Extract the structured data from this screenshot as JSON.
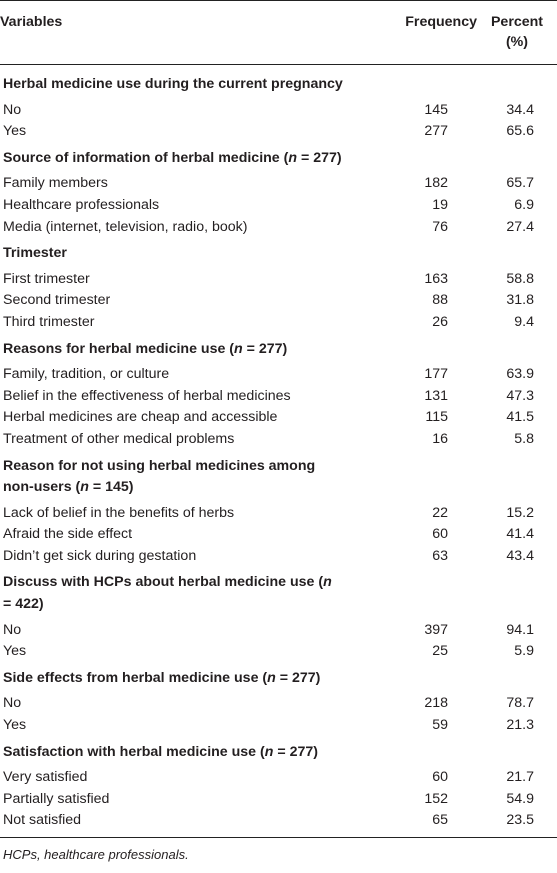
{
  "header": {
    "variables": "Variables",
    "frequency": "Frequency",
    "percent_line1": "Percent",
    "percent_line2": "(%)"
  },
  "sections": [
    {
      "title": "Herbal medicine use during the current pregnancy",
      "rows": [
        {
          "label": "No",
          "frequency": "145",
          "percent": "34.4"
        },
        {
          "label": "Yes",
          "frequency": "277",
          "percent": "65.6"
        }
      ]
    },
    {
      "title_pre": "Source of information of herbal medicine (",
      "n_letter": "n",
      "title_post": " = 277)",
      "rows": [
        {
          "label": "Family members",
          "frequency": "182",
          "percent": "65.7"
        },
        {
          "label": "Healthcare professionals",
          "frequency": "19",
          "percent": "6.9"
        },
        {
          "label": "Media (internet, television, radio, book)",
          "frequency": "76",
          "percent": "27.4"
        }
      ]
    },
    {
      "title": "Trimester",
      "rows": [
        {
          "label": "First trimester",
          "frequency": "163",
          "percent": "58.8"
        },
        {
          "label": "Second trimester",
          "frequency": "88",
          "percent": "31.8"
        },
        {
          "label": "Third trimester",
          "frequency": "26",
          "percent": "9.4"
        }
      ]
    },
    {
      "title_pre": "Reasons for herbal medicine use (",
      "n_letter": "n",
      "title_post": " = 277)",
      "rows": [
        {
          "label": "Family, tradition, or culture",
          "frequency": "177",
          "percent": "63.9"
        },
        {
          "label": "Belief in the effectiveness of herbal medicines",
          "frequency": "131",
          "percent": "47.3"
        },
        {
          "label": "Herbal medicines are cheap and accessible",
          "frequency": "115",
          "percent": "41.5"
        },
        {
          "label": "Treatment of other medical problems",
          "frequency": "16",
          "percent": "5.8"
        }
      ]
    },
    {
      "title_line1": "Reason for not using herbal medicines among",
      "title_pre": "non-users (",
      "n_letter": "n",
      "title_post": " = 145)",
      "rows": [
        {
          "label": "Lack of belief in the benefits of herbs",
          "frequency": "22",
          "percent": "15.2"
        },
        {
          "label": "Afraid the side effect",
          "frequency": "60",
          "percent": "41.4"
        },
        {
          "label": "Didn’t get sick during gestation",
          "frequency": "63",
          "percent": "43.4"
        }
      ]
    },
    {
      "title_line1_pre": "Discuss with HCPs about herbal medicine use (",
      "n_letter": "n",
      "title_line2": "= 422)",
      "rows": [
        {
          "label": "No",
          "frequency": "397",
          "percent": "94.1"
        },
        {
          "label": "Yes",
          "frequency": "25",
          "percent": "5.9"
        }
      ]
    },
    {
      "title_pre": "Side effects from herbal medicine use (",
      "n_letter": "n",
      "title_post": " = 277)",
      "rows": [
        {
          "label": "No",
          "frequency": "218",
          "percent": "78.7"
        },
        {
          "label": "Yes",
          "frequency": "59",
          "percent": "21.3"
        }
      ]
    },
    {
      "title_pre": "Satisfaction with herbal medicine use (",
      "n_letter": "n",
      "title_post": " = 277)",
      "rows": [
        {
          "label": "Very satisfied",
          "frequency": "60",
          "percent": "21.7"
        },
        {
          "label": "Partially satisfied",
          "frequency": "152",
          "percent": "54.9"
        },
        {
          "label": "Not satisfied",
          "frequency": "65",
          "percent": "23.5"
        }
      ]
    }
  ],
  "footnote": "HCPs, healthcare professionals."
}
